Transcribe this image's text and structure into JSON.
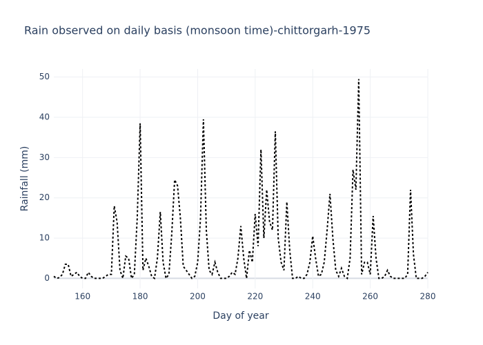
{
  "chart_data": {
    "type": "line",
    "title": "Rain observed on daily basis (monsoon time)-chittorgarh-1975",
    "x_label": "Day of year",
    "y_label": "Rainfall (mm)",
    "x": [
      150,
      151,
      152,
      153,
      154,
      155,
      156,
      157,
      158,
      159,
      160,
      161,
      162,
      163,
      164,
      165,
      166,
      167,
      168,
      169,
      170,
      171,
      172,
      173,
      174,
      175,
      176,
      177,
      178,
      179,
      180,
      181,
      182,
      183,
      184,
      185,
      186,
      187,
      188,
      189,
      190,
      191,
      192,
      193,
      194,
      195,
      196,
      197,
      198,
      199,
      200,
      201,
      202,
      203,
      204,
      205,
      206,
      207,
      208,
      209,
      210,
      211,
      212,
      213,
      214,
      215,
      216,
      217,
      218,
      219,
      220,
      221,
      222,
      223,
      224,
      225,
      226,
      227,
      228,
      229,
      230,
      231,
      232,
      233,
      234,
      235,
      236,
      237,
      238,
      239,
      240,
      241,
      242,
      243,
      244,
      245,
      246,
      247,
      248,
      249,
      250,
      251,
      252,
      253,
      254,
      255,
      256,
      257,
      258,
      259,
      260,
      261,
      262,
      263,
      264,
      265,
      266,
      267,
      268,
      269,
      270,
      271,
      272,
      273,
      274,
      275,
      276,
      277,
      278,
      279,
      280
    ],
    "series": [
      {
        "color": "#000000",
        "values": [
          0.5,
          0,
          0.2,
          1,
          3.5,
          3.5,
          0.5,
          1,
          1.5,
          0.5,
          0,
          0,
          1.5,
          0.5,
          0,
          0,
          0,
          0,
          0.5,
          1,
          1,
          18,
          14,
          2,
          0,
          5.5,
          5,
          0,
          1,
          15,
          38.5,
          2,
          5,
          3,
          0.5,
          0,
          5,
          16.5,
          4,
          0,
          1,
          11,
          24.5,
          23,
          15,
          3,
          2,
          1,
          0,
          0.5,
          4,
          15,
          39.5,
          12,
          2,
          1,
          4,
          1.5,
          0,
          0,
          0,
          0.5,
          1.5,
          1,
          5,
          13,
          5,
          0,
          7,
          4,
          16,
          8,
          32,
          10,
          22,
          14,
          12,
          36.5,
          10,
          4,
          2,
          19,
          7,
          0,
          0,
          0.5,
          0,
          0,
          1,
          4,
          10.5,
          5,
          0.5,
          1,
          4,
          12,
          21,
          10,
          2,
          0.5,
          2.5,
          0.5,
          0,
          5,
          27,
          22,
          49.5,
          1,
          4,
          4,
          1,
          15.5,
          5,
          0,
          0,
          0.5,
          2,
          0.5,
          0,
          0,
          0,
          0,
          0,
          1,
          22,
          6,
          0,
          0,
          0,
          0.5,
          1.5
        ]
      }
    ],
    "xlim": [
      150,
      280
    ],
    "xticks": [
      160,
      180,
      200,
      220,
      240,
      260,
      280
    ],
    "ylim": [
      -2.5,
      52
    ],
    "yticks": [
      0,
      10,
      20,
      30,
      40,
      50
    ],
    "grid": true
  }
}
